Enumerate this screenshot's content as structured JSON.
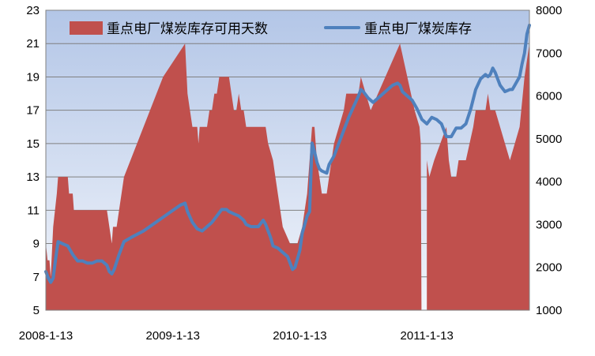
{
  "chart_data": {
    "type": "area+line",
    "grid": true,
    "legend_placement": "top",
    "colors": {
      "plot_top": "#b3c6e7",
      "plot_bottom": "#f2f5fb",
      "area_fill": "#c0504d",
      "line": "#4f81bd",
      "grid": "#808080",
      "frame": "#808080"
    },
    "x_axis": {
      "tick_labels": [
        "2008-1-13",
        "2009-1-13",
        "2010-1-13",
        "2011-1-13"
      ],
      "tick_positions": [
        0,
        52,
        104,
        156
      ],
      "range": [
        0,
        198
      ]
    },
    "y_left": {
      "min": 5,
      "max": 23,
      "ticks": [
        5,
        7,
        9,
        11,
        13,
        15,
        17,
        19,
        21,
        23
      ]
    },
    "y_right": {
      "min": 1000,
      "max": 8000,
      "ticks": [
        1000,
        2000,
        3000,
        4000,
        5000,
        6000,
        7000,
        8000
      ]
    },
    "series": [
      {
        "name": "重点电厂煤炭库存可用天数",
        "kind": "area",
        "axis": "left",
        "points": [
          [
            0,
            9
          ],
          [
            0.7,
            8
          ],
          [
            1.5,
            8
          ],
          [
            2,
            7
          ],
          [
            3,
            10
          ],
          [
            4.5,
            12
          ],
          [
            5,
            13
          ],
          [
            7,
            13
          ],
          [
            9,
            13
          ],
          [
            9.5,
            12
          ],
          [
            11,
            12
          ],
          [
            11.5,
            11
          ],
          [
            14,
            11
          ],
          [
            20,
            11
          ],
          [
            25,
            11
          ],
          [
            26,
            10
          ],
          [
            27,
            9
          ],
          [
            27.5,
            10
          ],
          [
            29,
            10
          ],
          [
            30,
            11
          ],
          [
            31,
            12
          ],
          [
            32,
            13
          ],
          [
            48,
            19
          ],
          [
            57,
            21
          ],
          [
            58,
            18
          ],
          [
            59,
            17
          ],
          [
            60,
            16
          ],
          [
            62,
            16
          ],
          [
            62.5,
            15
          ],
          [
            63,
            16
          ],
          [
            64,
            16
          ],
          [
            66,
            16
          ],
          [
            67,
            17
          ],
          [
            68,
            17
          ],
          [
            69,
            18
          ],
          [
            70,
            18
          ],
          [
            71,
            19
          ],
          [
            72,
            19
          ],
          [
            75,
            19
          ],
          [
            76,
            18
          ],
          [
            77,
            17
          ],
          [
            78,
            17
          ],
          [
            79,
            18
          ],
          [
            80,
            17
          ],
          [
            81,
            17
          ],
          [
            82,
            16
          ],
          [
            90,
            16
          ],
          [
            91,
            15
          ],
          [
            93,
            14
          ],
          [
            94,
            13
          ],
          [
            95,
            12
          ],
          [
            97,
            10
          ],
          [
            100,
            9
          ],
          [
            103,
            9
          ],
          [
            104,
            9.5
          ],
          [
            105,
            10
          ],
          [
            106,
            11
          ],
          [
            107,
            12
          ],
          [
            108,
            14
          ],
          [
            109,
            16
          ],
          [
            110,
            16
          ],
          [
            110.5,
            15
          ],
          [
            111,
            14
          ],
          [
            112,
            13
          ],
          [
            113,
            12
          ],
          [
            115,
            12
          ],
          [
            116,
            13
          ],
          [
            117,
            14
          ],
          [
            118,
            15
          ],
          [
            119,
            15.5
          ],
          [
            120,
            16
          ],
          [
            122,
            17
          ],
          [
            123,
            18
          ],
          [
            128,
            18
          ],
          [
            129,
            19
          ],
          [
            130,
            18.5
          ],
          [
            131,
            18
          ],
          [
            132,
            17.5
          ],
          [
            133,
            17
          ],
          [
            145,
            21
          ],
          [
            151,
            17
          ],
          [
            153,
            16
          ],
          [
            153.5,
            15
          ],
          [
            153.8,
            5
          ],
          [
            156,
            5
          ],
          [
            156,
            14
          ],
          [
            157,
            13
          ],
          [
            159,
            14
          ],
          [
            164,
            16
          ],
          [
            165,
            14
          ],
          [
            166,
            13
          ],
          [
            168,
            13
          ],
          [
            169,
            14
          ],
          [
            172,
            14
          ],
          [
            175,
            16
          ],
          [
            176,
            17
          ],
          [
            180,
            17
          ],
          [
            181,
            18
          ],
          [
            182,
            17
          ],
          [
            184,
            17
          ],
          [
            190,
            14
          ],
          [
            192,
            15
          ],
          [
            194,
            16
          ],
          [
            196,
            19
          ],
          [
            198,
            21
          ]
        ]
      },
      {
        "name": "重点电厂煤炭库存",
        "kind": "line",
        "axis": "right",
        "points": [
          [
            0,
            1900
          ],
          [
            1,
            1750
          ],
          [
            2,
            1650
          ],
          [
            3,
            1750
          ],
          [
            4,
            2200
          ],
          [
            5,
            2600
          ],
          [
            7,
            2550
          ],
          [
            9,
            2500
          ],
          [
            11,
            2300
          ],
          [
            13,
            2150
          ],
          [
            15,
            2150
          ],
          [
            17,
            2100
          ],
          [
            19,
            2100
          ],
          [
            21,
            2150
          ],
          [
            23,
            2150
          ],
          [
            25,
            2050
          ],
          [
            26,
            1900
          ],
          [
            27,
            1850
          ],
          [
            28,
            1950
          ],
          [
            30,
            2300
          ],
          [
            32,
            2600
          ],
          [
            35,
            2700
          ],
          [
            40,
            2850
          ],
          [
            45,
            3050
          ],
          [
            50,
            3250
          ],
          [
            55,
            3450
          ],
          [
            57,
            3500
          ],
          [
            58,
            3300
          ],
          [
            60,
            3050
          ],
          [
            62,
            2900
          ],
          [
            64,
            2850
          ],
          [
            66,
            2950
          ],
          [
            68,
            3050
          ],
          [
            70,
            3200
          ],
          [
            72,
            3350
          ],
          [
            74,
            3350
          ],
          [
            75,
            3300
          ],
          [
            77,
            3250
          ],
          [
            79,
            3200
          ],
          [
            81,
            3100
          ],
          [
            82,
            3000
          ],
          [
            84,
            2950
          ],
          [
            87,
            2950
          ],
          [
            89,
            3100
          ],
          [
            90,
            3000
          ],
          [
            92,
            2700
          ],
          [
            93,
            2500
          ],
          [
            95,
            2450
          ],
          [
            97,
            2350
          ],
          [
            99,
            2250
          ],
          [
            100,
            2100
          ],
          [
            101,
            1950
          ],
          [
            102,
            2000
          ],
          [
            103,
            2200
          ],
          [
            104,
            2400
          ],
          [
            105,
            2800
          ],
          [
            106,
            3000
          ],
          [
            107,
            3200
          ],
          [
            108,
            3300
          ],
          [
            109,
            4900
          ],
          [
            110,
            4700
          ],
          [
            111,
            4450
          ],
          [
            112,
            4300
          ],
          [
            113,
            4250
          ],
          [
            115,
            4200
          ],
          [
            116,
            4400
          ],
          [
            118,
            4600
          ],
          [
            120,
            4900
          ],
          [
            122,
            5200
          ],
          [
            124,
            5500
          ],
          [
            126,
            5750
          ],
          [
            128,
            6000
          ],
          [
            129,
            6150
          ],
          [
            130,
            6100
          ],
          [
            132,
            5950
          ],
          [
            134,
            5850
          ],
          [
            136,
            5950
          ],
          [
            138,
            6050
          ],
          [
            140,
            6150
          ],
          [
            142,
            6250
          ],
          [
            144,
            6300
          ],
          [
            145,
            6250
          ],
          [
            146,
            6100
          ],
          [
            148,
            6000
          ],
          [
            150,
            5900
          ],
          [
            152,
            5700
          ],
          [
            154,
            5450
          ],
          [
            156,
            5350
          ],
          [
            158,
            5500
          ],
          [
            160,
            5450
          ],
          [
            162,
            5350
          ],
          [
            164,
            5050
          ],
          [
            166,
            5050
          ],
          [
            168,
            5250
          ],
          [
            170,
            5250
          ],
          [
            172,
            5350
          ],
          [
            174,
            5700
          ],
          [
            176,
            6150
          ],
          [
            178,
            6400
          ],
          [
            180,
            6500
          ],
          [
            181,
            6450
          ],
          [
            182,
            6500
          ],
          [
            183,
            6650
          ],
          [
            184,
            6550
          ],
          [
            185,
            6400
          ],
          [
            186,
            6250
          ],
          [
            188,
            6100
          ],
          [
            190,
            6150
          ],
          [
            191,
            6150
          ],
          [
            192,
            6250
          ],
          [
            194,
            6450
          ],
          [
            195,
            6750
          ],
          [
            196,
            7000
          ],
          [
            197,
            7450
          ],
          [
            198,
            7650
          ]
        ]
      }
    ],
    "legend": [
      {
        "label": "重点电厂煤炭库存可用天数",
        "swatch": "area"
      },
      {
        "label": "重点电厂煤炭库存",
        "swatch": "line"
      }
    ]
  }
}
